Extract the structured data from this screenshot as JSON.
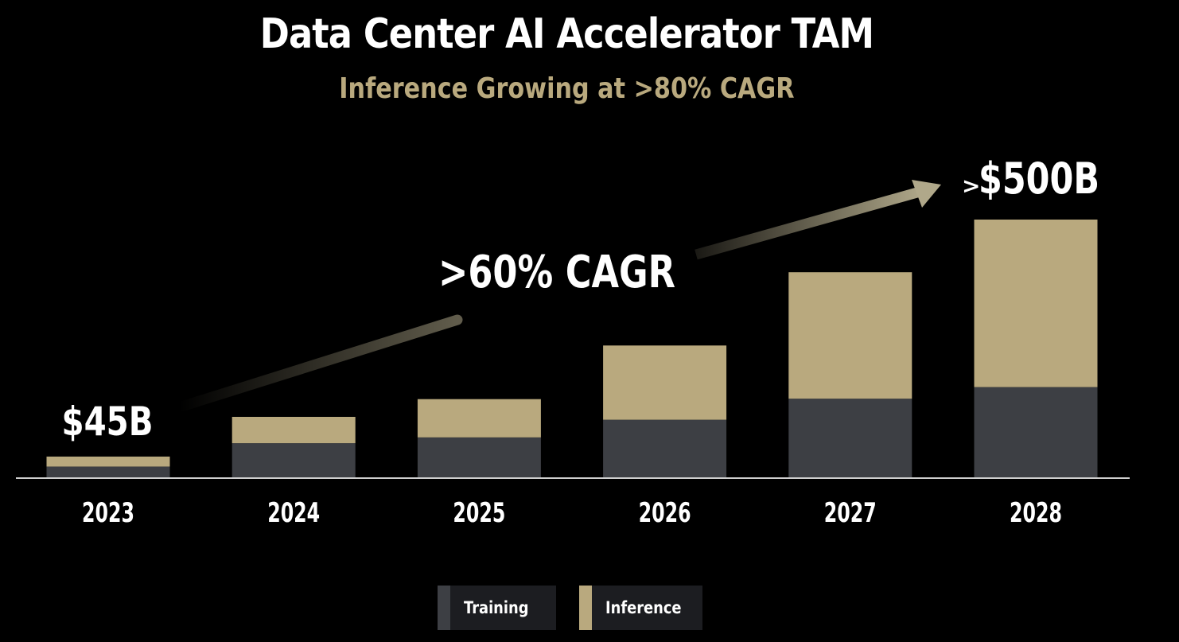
{
  "header": {
    "title": "Data Center AI Accelerator TAM",
    "subtitle": "Inference Growing at >80% CAGR"
  },
  "colors": {
    "background": "#000000",
    "training": "#3d3f44",
    "inference": "#b9a97e",
    "text": "#ffffff",
    "subtitle": "#b9a97e",
    "legend_bg": "#1c1d21",
    "arrow": "#b0a88a"
  },
  "legend": {
    "training_label": "Training",
    "inference_label": "Inference"
  },
  "annotations": {
    "start_value": "$45B",
    "cagr": ">60% CAGR",
    "end_prefix": ">",
    "end_value": "$500B"
  },
  "chart_data": {
    "type": "bar",
    "stacked": true,
    "title": "Data Center AI Accelerator TAM",
    "subtitle": "Inference Growing at >80% CAGR",
    "categories": [
      "2023",
      "2024",
      "2025",
      "2026",
      "2027",
      "2028"
    ],
    "series": [
      {
        "name": "Training",
        "values": [
          24,
          73,
          85,
          122,
          166,
          190
        ]
      },
      {
        "name": "Inference",
        "values": [
          21,
          55,
          80,
          155,
          264,
          350
        ]
      }
    ],
    "totals": [
      45,
      128,
      165,
      277,
      430,
      540
    ],
    "ylim": [
      0,
      560
    ],
    "xlabel": "",
    "ylabel": "",
    "grid": false,
    "legend_position": "bottom-center"
  }
}
